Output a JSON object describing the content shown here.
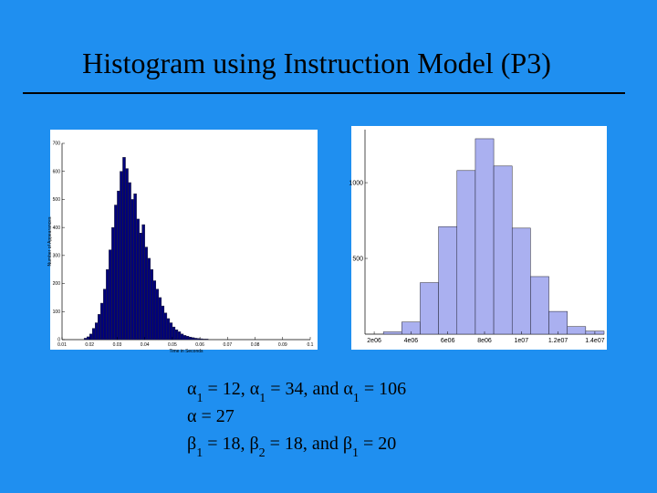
{
  "title": "Histogram using Instruction Model (P3)",
  "chart_data": [
    {
      "type": "histogram",
      "color": "#00007a",
      "ylabel": "Number of Appearances",
      "xlabel": "Time in Seconds",
      "bins": [
        0.018,
        0.019,
        0.02,
        0.021,
        0.022,
        0.023,
        0.024,
        0.025,
        0.026,
        0.027,
        0.028,
        0.029,
        0.03,
        0.031,
        0.032,
        0.033,
        0.034,
        0.035,
        0.036,
        0.037,
        0.038,
        0.039,
        0.04,
        0.041,
        0.042,
        0.043,
        0.044,
        0.045,
        0.046,
        0.047,
        0.048,
        0.049,
        0.05,
        0.051,
        0.052,
        0.053,
        0.054,
        0.055,
        0.056,
        0.057,
        0.058,
        0.059,
        0.06,
        0.061,
        0.062,
        0.063
      ],
      "values": [
        5,
        10,
        20,
        40,
        60,
        90,
        130,
        180,
        250,
        320,
        400,
        480,
        530,
        600,
        650,
        610,
        560,
        500,
        520,
        430,
        380,
        410,
        330,
        290,
        250,
        210,
        180,
        150,
        120,
        95,
        75,
        60,
        45,
        35,
        28,
        20,
        15,
        12,
        9,
        7,
        5,
        4,
        3,
        2,
        2
      ],
      "xlim": [
        0.01,
        0.1
      ],
      "xticks": [
        0.01,
        0.02,
        0.03,
        0.04,
        0.05,
        0.06,
        0.07,
        0.08,
        0.09,
        0.1
      ],
      "ylim": [
        0,
        700
      ],
      "yticks": [
        0,
        100,
        200,
        300,
        400,
        500,
        600,
        700
      ]
    },
    {
      "type": "histogram",
      "color": "#aab0f0",
      "bins": [
        2500000,
        3500000,
        4500000,
        5500000,
        6500000,
        7500000,
        8500000,
        9500000,
        10500000,
        11500000,
        12500000,
        13500000,
        14500000
      ],
      "values": [
        15,
        80,
        340,
        710,
        1080,
        1290,
        1110,
        700,
        380,
        150,
        50,
        20
      ],
      "xlim": [
        1500000,
        14500000
      ],
      "xticks": [
        {
          "value": 2000000,
          "label": "2e06"
        },
        {
          "value": 4000000,
          "label": "4e06"
        },
        {
          "value": 6000000,
          "label": "6e06"
        },
        {
          "value": 8000000,
          "label": "8e06"
        },
        {
          "value": 10000000,
          "label": "1e07"
        },
        {
          "value": 12000000,
          "label": "1.2e07"
        },
        {
          "value": 14000000,
          "label": "1.4e07"
        }
      ],
      "ylim": [
        0,
        1350
      ],
      "yticks": [
        500,
        1000
      ]
    }
  ],
  "text_lines": [
    [
      {
        "t": "α"
      },
      {
        "sub": "1"
      },
      {
        "t": " = 12, "
      },
      {
        "t": "α"
      },
      {
        "sub": "1"
      },
      {
        "t": " = 34, and "
      },
      {
        "t": "α"
      },
      {
        "sub": "1"
      },
      {
        "t": " = 106"
      }
    ],
    [
      {
        "t": "α = 27"
      }
    ],
    [
      {
        "t": "β"
      },
      {
        "sub": "1"
      },
      {
        "t": " = 18, "
      },
      {
        "t": "β"
      },
      {
        "sub": "2"
      },
      {
        "t": " = 18,  and "
      },
      {
        "t": "β"
      },
      {
        "sub": "1"
      },
      {
        "t": " = 20"
      }
    ]
  ]
}
